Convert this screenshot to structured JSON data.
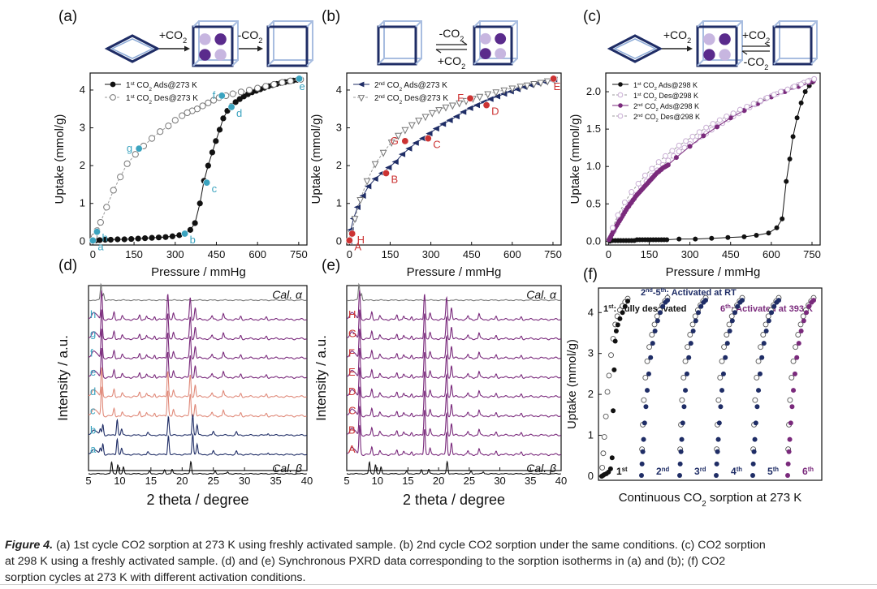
{
  "figure": {
    "colors": {
      "navy": "#1f2d66",
      "purple": "#7a2a7c",
      "teal": "#3ba3bf",
      "red": "#cc3333",
      "lightpurple": "#c9aed4",
      "black": "#111111",
      "gray": "#777777",
      "pink": "#e08a7a"
    },
    "panels": [
      {
        "label": "(a)",
        "schematic": {
          "steps": [
            "+CO2",
            "-CO2"
          ]
        }
      },
      {
        "label": "(b)",
        "schematic": {
          "steps": [
            "-CO2",
            "+CO2"
          ]
        }
      },
      {
        "label": "(c)",
        "schematic": {
          "steps": [
            "+CO2",
            "+CO2",
            "-CO2"
          ]
        }
      },
      {
        "label": "(d)"
      },
      {
        "label": "(e)"
      },
      {
        "label": "(f)"
      }
    ]
  },
  "chart_data": [
    {
      "id": "a",
      "type": "scatter",
      "title": "",
      "xlabel": "Pressure / mmHg",
      "ylabel": "Uptake (mmol/g)",
      "xlim": [
        -10,
        780
      ],
      "ylim": [
        -0.1,
        4.45
      ],
      "xticks": [
        0,
        150,
        300,
        450,
        600,
        750
      ],
      "yticks": [
        0,
        1,
        2,
        3,
        4
      ],
      "legend": {
        "position": "top-right",
        "entries": [
          "1st CO2 Ads@273 K",
          "1st CO2 Des@273 K"
        ]
      },
      "series": [
        {
          "name": "1st CO2 Ads@273 K",
          "style": "filled-circle",
          "color": "black",
          "x": [
            0,
            10,
            25,
            45,
            65,
            90,
            115,
            140,
            165,
            190,
            215,
            240,
            265,
            290,
            315,
            335,
            355,
            372,
            390,
            405,
            420,
            435,
            448,
            462,
            475,
            490,
            505,
            520,
            535,
            550,
            565,
            580,
            595,
            610,
            625,
            640,
            655,
            670,
            685,
            700,
            715,
            730,
            745,
            757
          ],
          "y": [
            0.0,
            0.02,
            0.03,
            0.04,
            0.04,
            0.05,
            0.05,
            0.06,
            0.07,
            0.08,
            0.09,
            0.1,
            0.11,
            0.13,
            0.16,
            0.21,
            0.3,
            0.48,
            1.0,
            1.6,
            2.0,
            2.35,
            2.65,
            2.95,
            3.25,
            3.45,
            3.58,
            3.68,
            3.76,
            3.83,
            3.89,
            3.94,
            3.98,
            4.02,
            4.06,
            4.1,
            4.13,
            4.16,
            4.19,
            4.21,
            4.23,
            4.25,
            4.27,
            4.28
          ]
        },
        {
          "name": "1st CO2 Des@273 K",
          "style": "open-circle",
          "color": "gray",
          "x": [
            757,
            720,
            690,
            660,
            630,
            600,
            570,
            540,
            510,
            485,
            460,
            440,
            420,
            400,
            380,
            362,
            344,
            325,
            300,
            275,
            245,
            215,
            185,
            155,
            125,
            100,
            75,
            50,
            28,
            15,
            5
          ],
          "y": [
            4.28,
            4.24,
            4.2,
            4.15,
            4.1,
            4.05,
            4.0,
            3.95,
            3.9,
            3.85,
            3.8,
            3.73,
            3.66,
            3.58,
            3.5,
            3.45,
            3.4,
            3.32,
            3.2,
            3.05,
            2.9,
            2.72,
            2.52,
            2.3,
            2.05,
            1.7,
            1.35,
            0.9,
            0.5,
            0.28,
            0.12
          ]
        },
        {
          "name": "points",
          "style": "labeled",
          "color": "teal",
          "labels": [
            "a",
            "b",
            "c",
            "d",
            "e",
            "f",
            "g",
            "h"
          ],
          "x": [
            0,
            335,
            415,
            505,
            752,
            470,
            168,
            15
          ],
          "y": [
            0.02,
            0.2,
            1.55,
            3.55,
            4.3,
            3.85,
            2.45,
            0.25
          ]
        }
      ]
    },
    {
      "id": "b",
      "type": "scatter",
      "title": "",
      "xlabel": "Pressure / mmHg",
      "ylabel": "Uptake (mmol/g)",
      "xlim": [
        -10,
        780
      ],
      "ylim": [
        -0.1,
        4.45
      ],
      "xticks": [
        0,
        150,
        300,
        450,
        600,
        750
      ],
      "yticks": [
        0,
        1,
        2,
        3,
        4
      ],
      "legend": {
        "position": "top-left",
        "entries": [
          "2nd CO2 Ads@273 K",
          "2nd CO2 Des@273 K"
        ]
      },
      "series": [
        {
          "name": "2nd CO2 Ads@273 K",
          "style": "filled-triangle-left",
          "color": "navy",
          "x": [
            0,
            5,
            15,
            30,
            50,
            70,
            95,
            120,
            145,
            170,
            195,
            220,
            245,
            270,
            295,
            320,
            345,
            370,
            395,
            420,
            445,
            470,
            495,
            520,
            545,
            570,
            595,
            620,
            645,
            670,
            695,
            720,
            745,
            755
          ],
          "y": [
            0.0,
            0.3,
            0.6,
            0.9,
            1.2,
            1.45,
            1.65,
            1.8,
            1.95,
            2.1,
            2.3,
            2.45,
            2.6,
            2.72,
            2.85,
            2.98,
            3.1,
            3.2,
            3.3,
            3.42,
            3.52,
            3.6,
            3.68,
            3.76,
            3.83,
            3.9,
            3.96,
            4.02,
            4.08,
            4.13,
            4.18,
            4.22,
            4.26,
            4.28
          ]
        },
        {
          "name": "2nd CO2 Des@273 K",
          "style": "open-triangle-down",
          "color": "gray",
          "x": [
            755,
            730,
            705,
            680,
            655,
            630,
            600,
            570,
            540,
            510,
            480,
            455,
            430,
            405,
            380,
            355,
            330,
            305,
            280,
            255,
            230,
            205,
            180,
            155,
            125,
            95,
            65,
            40,
            20,
            8
          ],
          "y": [
            4.28,
            4.24,
            4.2,
            4.17,
            4.13,
            4.1,
            4.05,
            4.0,
            3.95,
            3.9,
            3.83,
            3.78,
            3.72,
            3.66,
            3.6,
            3.55,
            3.48,
            3.4,
            3.3,
            3.2,
            3.08,
            2.95,
            2.8,
            2.62,
            2.35,
            2.05,
            1.6,
            1.1,
            0.6,
            0.2
          ]
        },
        {
          "name": "points",
          "style": "labeled",
          "color": "red",
          "labels": [
            "A",
            "H",
            "B",
            "C",
            "D",
            "E",
            "F",
            "G"
          ],
          "x": [
            0,
            10,
            135,
            290,
            505,
            752,
            445,
            205
          ],
          "y": [
            0.02,
            0.2,
            1.8,
            2.72,
            3.6,
            4.3,
            3.78,
            2.65
          ]
        }
      ]
    },
    {
      "id": "c",
      "type": "scatter",
      "title": "",
      "xlabel": "Pressure / mmHg",
      "ylabel": "Uptake (mmol/g)",
      "xlim": [
        -10,
        780
      ],
      "ylim": [
        -0.05,
        2.25
      ],
      "xticks": [
        0,
        150,
        300,
        450,
        600,
        750
      ],
      "yticks": [
        0.0,
        0.5,
        1.0,
        1.5,
        2.0
      ],
      "legend": {
        "position": "top-left",
        "entries": [
          "1st CO2 Ads@298 K",
          "1st CO2 Des@298 K",
          "2nd CO2 Ads@298 K",
          "2nd CO2 Des@298 K"
        ]
      },
      "series": [
        {
          "name": "1st CO2 Ads@298 K",
          "style": "filled-circle",
          "color": "black",
          "x": [
            5,
            15,
            25,
            35,
            45,
            55,
            65,
            75,
            85,
            95,
            105,
            115,
            125,
            135,
            145,
            155,
            165,
            175,
            185,
            195,
            205,
            215,
            260,
            320,
            380,
            440,
            500,
            545,
            590,
            620,
            640,
            655,
            668,
            680,
            695,
            710,
            725,
            740,
            752,
            758
          ],
          "y": [
            0.0,
            0.01,
            0.01,
            0.01,
            0.01,
            0.01,
            0.01,
            0.01,
            0.01,
            0.01,
            0.02,
            0.02,
            0.02,
            0.02,
            0.02,
            0.02,
            0.02,
            0.02,
            0.02,
            0.02,
            0.02,
            0.02,
            0.03,
            0.03,
            0.04,
            0.05,
            0.06,
            0.08,
            0.11,
            0.18,
            0.3,
            0.8,
            1.1,
            1.4,
            1.65,
            1.85,
            2.0,
            2.08,
            2.13,
            2.16
          ]
        },
        {
          "name": "1st CO2 Des@298 K",
          "style": "open-circle",
          "color": "lightpurple",
          "x": [
            758,
            740,
            720,
            700,
            680,
            660,
            640,
            620,
            600,
            580,
            560,
            540,
            520,
            500,
            480,
            460,
            440,
            420,
            400,
            380,
            360,
            340,
            320,
            300,
            280,
            260,
            240,
            220,
            200,
            180,
            160,
            140,
            120,
            100,
            80,
            60,
            40,
            20
          ],
          "y": [
            2.17,
            2.15,
            2.12,
            2.09,
            2.06,
            2.03,
            2.0,
            1.97,
            1.94,
            1.91,
            1.87,
            1.83,
            1.79,
            1.75,
            1.71,
            1.67,
            1.63,
            1.58,
            1.54,
            1.49,
            1.44,
            1.4,
            1.35,
            1.3,
            1.25,
            1.2,
            1.14,
            1.08,
            1.02,
            0.95,
            0.88,
            0.8,
            0.72,
            0.62,
            0.52,
            0.41,
            0.28,
            0.14
          ]
        },
        {
          "name": "2nd CO2 Ads@298 K",
          "style": "filled-circle-line",
          "color": "purple",
          "x": [
            2,
            5,
            8,
            12,
            16,
            20,
            25,
            30,
            35,
            40,
            45,
            50,
            55,
            60,
            65,
            70,
            75,
            80,
            85,
            90,
            95,
            100,
            105,
            110,
            115,
            120,
            125,
            130,
            135,
            140,
            145,
            150,
            155,
            160,
            165,
            170,
            175,
            180,
            185,
            190,
            195,
            200,
            205,
            210,
            215,
            220,
            250,
            300,
            350,
            400,
            450,
            500,
            550,
            600,
            650,
            700,
            740,
            755
          ],
          "y": [
            0.02,
            0.04,
            0.06,
            0.09,
            0.12,
            0.15,
            0.18,
            0.21,
            0.24,
            0.27,
            0.3,
            0.33,
            0.36,
            0.39,
            0.42,
            0.45,
            0.47,
            0.5,
            0.52,
            0.55,
            0.57,
            0.6,
            0.62,
            0.64,
            0.66,
            0.68,
            0.7,
            0.72,
            0.74,
            0.76,
            0.78,
            0.8,
            0.82,
            0.84,
            0.86,
            0.88,
            0.9,
            0.92,
            0.93,
            0.95,
            0.96,
            0.98,
            0.99,
            1.0,
            1.01,
            1.02,
            1.12,
            1.27,
            1.41,
            1.53,
            1.65,
            1.75,
            1.84,
            1.93,
            2.0,
            2.07,
            2.12,
            2.14
          ]
        },
        {
          "name": "2nd CO2 Des@298 K",
          "style": "open-circle",
          "color": "lightpurple",
          "x": [
            758,
            735,
            710,
            685,
            660,
            635,
            610,
            585,
            560,
            535,
            510,
            485,
            460,
            435,
            410,
            385,
            360,
            335,
            310,
            285,
            260,
            235,
            210,
            185,
            160,
            135,
            110,
            85,
            60,
            35,
            15
          ],
          "y": [
            2.17,
            2.14,
            2.1,
            2.07,
            2.03,
            2.0,
            1.96,
            1.92,
            1.88,
            1.84,
            1.8,
            1.76,
            1.71,
            1.67,
            1.62,
            1.57,
            1.52,
            1.46,
            1.4,
            1.34,
            1.28,
            1.21,
            1.14,
            1.06,
            0.97,
            0.88,
            0.77,
            0.66,
            0.52,
            0.35,
            0.18
          ]
        }
      ]
    },
    {
      "id": "d",
      "type": "line",
      "title": "",
      "xlabel": "2 theta / degree",
      "ylabel": "Intensity / a.u.",
      "xlim": [
        5,
        40
      ],
      "xticks": [
        5,
        10,
        15,
        20,
        25,
        30,
        35,
        40
      ],
      "traces": [
        "Cal. α",
        "h",
        "g",
        "f",
        "e",
        "d",
        "c",
        "b",
        "a",
        "Cal. β"
      ],
      "trace_colors": [
        "gray",
        "purple",
        "purple",
        "purple",
        "purple",
        "pink",
        "pink",
        "navy",
        "navy",
        "black"
      ]
    },
    {
      "id": "e",
      "type": "line",
      "title": "",
      "xlabel": "2 theta / degree",
      "ylabel": "Intensity / a.u.",
      "xlim": [
        5,
        40
      ],
      "xticks": [
        5,
        10,
        15,
        20,
        25,
        30,
        35,
        40
      ],
      "traces": [
        "Cal. α",
        "H",
        "G",
        "F",
        "E",
        "D",
        "C",
        "B",
        "A",
        "Cal. β"
      ],
      "trace_colors": [
        "gray",
        "purple",
        "purple",
        "purple",
        "purple",
        "purple",
        "purple",
        "purple",
        "purple",
        "black"
      ]
    },
    {
      "id": "f",
      "type": "scatter",
      "title": "",
      "xlabel": "Continuous CO2 sorption at 273 K",
      "ylabel": "Uptake (mmol/g)",
      "ylim": [
        -0.1,
        4.6
      ],
      "yticks": [
        0,
        1,
        2,
        3,
        4
      ],
      "annotations": [
        "1st: Fully desovated",
        "2nd-5th: Activated at RT",
        "6th: Activated at 393 K"
      ],
      "cycles": [
        "1st",
        "2nd",
        "3rd",
        "4th",
        "5th",
        "6th"
      ],
      "cycle_colors": [
        "black",
        "navy",
        "navy",
        "navy",
        "navy",
        "purple"
      ]
    }
  ],
  "caption": {
    "lead": "Figure 4.",
    "line1": " (a) 1st cycle CO2 sorption at 273 K using freshly activated sample. (b) 2nd cycle CO2 sorption under the same conditions. (c) CO2 sorption",
    "line2": "at 298 K using a freshly activated sample. (d) and (e) Synchronous PXRD data corresponding to the sorption isotherms in (a) and (b); (f) CO2",
    "line3": "sorption cycles at 273 K with different activation conditions."
  }
}
